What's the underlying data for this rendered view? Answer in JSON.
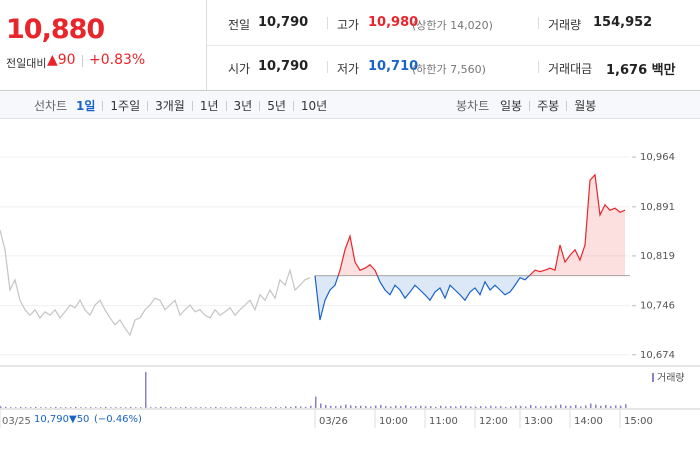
{
  "header": {
    "price": "10,880",
    "change_label": "전일대비",
    "change": "▲90",
    "change_pct": "+0.83%",
    "stats": [
      {
        "label": "전일",
        "value": "10,790"
      },
      {
        "label": "고가",
        "value": "10,980",
        "note": "(상한가 14,020)"
      },
      {
        "label": "거래량",
        "value": "154,952"
      },
      {
        "label": "시가",
        "value": "10,790"
      },
      {
        "label": "저가",
        "value": "10,710",
        "note": "(하한가 7,560)"
      },
      {
        "label": "거래대금",
        "value": "1,676 백만"
      }
    ]
  },
  "tabs": {
    "line_label": "선차트",
    "line_tabs": [
      "1일",
      "1주일",
      "3개월",
      "1년",
      "3년",
      "5년",
      "10년"
    ],
    "candle_label": "봉차트",
    "candle_tabs": [
      "일봉",
      "주봉",
      "월봉"
    ]
  },
  "footer": {
    "close": "10,790",
    "change": "▼50",
    "change_pct": "(−0.46%)"
  },
  "chart_data": {
    "type": "line",
    "categories": [
      "03/25",
      null,
      null,
      null,
      null,
      null,
      null,
      null,
      null,
      null,
      null,
      null,
      null,
      null,
      null,
      null,
      null,
      null,
      null,
      null,
      null,
      null,
      null,
      null,
      null,
      null,
      null,
      null,
      null,
      null,
      null,
      null,
      null,
      null,
      null,
      null,
      null,
      null,
      null,
      null,
      null,
      null,
      null,
      null,
      null,
      null,
      null,
      null,
      null,
      null,
      null,
      null,
      null,
      null,
      null,
      null,
      null,
      null,
      null,
      null,
      null,
      null,
      null,
      "03/26",
      null,
      null,
      null,
      null,
      null,
      null,
      null,
      null,
      null,
      null,
      null,
      "10:00",
      null,
      null,
      null,
      null,
      null,
      null,
      null,
      null,
      null,
      "11:00",
      null,
      null,
      null,
      null,
      null,
      null,
      null,
      null,
      null,
      "12:00",
      null,
      null,
      null,
      null,
      null,
      null,
      null,
      null,
      "13:00",
      null,
      null,
      null,
      null,
      null,
      null,
      null,
      null,
      null,
      "14:00",
      null,
      null,
      null,
      null,
      null,
      null,
      null,
      null,
      null,
      "15:00",
      null
    ],
    "reference": 10790,
    "ylim": [
      10659,
      11011
    ],
    "yticks": [
      {
        "value": 10964,
        "label": "10,964"
      },
      {
        "value": 10891,
        "label": "10,891"
      },
      {
        "value": 10819,
        "label": "10,819"
      },
      {
        "value": 10746,
        "label": "10,746"
      },
      {
        "value": 10674,
        "label": "10,674"
      }
    ],
    "grid": true,
    "series": [
      {
        "color": "#c4c4c4",
        "values": [
          10857,
          10828,
          10769,
          10784,
          10754,
          10740,
          10732,
          10740,
          10728,
          10737,
          10732,
          10740,
          10728,
          10737,
          10747,
          10743,
          10754,
          10740,
          10732,
          10747,
          10754,
          10740,
          10728,
          10718,
          10725,
          10713,
          10703,
          10725,
          10728,
          10740,
          10747,
          10757,
          10754,
          10740,
          10747,
          10754,
          10732,
          10740,
          10747,
          10737,
          10740,
          10732,
          10728,
          10740,
          10732,
          10737,
          10743,
          10732,
          10740,
          10747,
          10754,
          10740,
          10762,
          10754,
          10769,
          10757,
          10784,
          10776,
          10798,
          10769,
          10776,
          10784,
          10787,
          null,
          null,
          null,
          null,
          null,
          null,
          null,
          null,
          null,
          null,
          null,
          null,
          null,
          null,
          null,
          null,
          null,
          null,
          null,
          null,
          null,
          null,
          null,
          null,
          null,
          null,
          null,
          null,
          null,
          null,
          null,
          null,
          null,
          null,
          null,
          null,
          null,
          null,
          null,
          null,
          null,
          null,
          null,
          null,
          null,
          null,
          null,
          null,
          null,
          null,
          null,
          null,
          null,
          null,
          null,
          null,
          null,
          null,
          null,
          null,
          null,
          null,
          null
        ]
      },
      {
        "color": "#e8252b",
        "color_below": "#1a63c8",
        "values": [
          null,
          null,
          null,
          null,
          null,
          null,
          null,
          null,
          null,
          null,
          null,
          null,
          null,
          null,
          null,
          null,
          null,
          null,
          null,
          null,
          null,
          null,
          null,
          null,
          null,
          null,
          null,
          null,
          null,
          null,
          null,
          null,
          null,
          null,
          null,
          null,
          null,
          null,
          null,
          null,
          null,
          null,
          null,
          null,
          null,
          null,
          null,
          null,
          null,
          null,
          null,
          null,
          null,
          null,
          null,
          null,
          null,
          null,
          null,
          null,
          null,
          null,
          null,
          10790,
          10725,
          10754,
          10769,
          10776,
          10798,
          10828,
          10848,
          10810,
          10798,
          10801,
          10806,
          10798,
          10781,
          10769,
          10762,
          10776,
          10769,
          10757,
          10766,
          10776,
          10769,
          10762,
          10754,
          10766,
          10772,
          10757,
          10776,
          10769,
          10762,
          10754,
          10766,
          10772,
          10762,
          10781,
          10769,
          10776,
          10769,
          10762,
          10766,
          10776,
          10787,
          10784,
          10791,
          10798,
          10796,
          10798,
          10801,
          10798,
          10835,
          10810,
          10820,
          10828,
          10813,
          10835,
          10930,
          10938,
          10879,
          10894,
          10886,
          10889,
          10883,
          10886
        ]
      },
      {
        "name": "거래량",
        "color": "#8a7fc8",
        "axis": "volume",
        "values": [
          4,
          3,
          2,
          2,
          3,
          2,
          2,
          3,
          2,
          2,
          2,
          3,
          2,
          2,
          2,
          3,
          2,
          2,
          2,
          2,
          2,
          3,
          2,
          2,
          2,
          2,
          3,
          2,
          2,
          95,
          2,
          2,
          3,
          2,
          2,
          2,
          2,
          3,
          2,
          2,
          2,
          2,
          2,
          3,
          2,
          2,
          2,
          2,
          3,
          2,
          2,
          2,
          3,
          2,
          2,
          3,
          2,
          4,
          3,
          5,
          4,
          3,
          6,
          30,
          12,
          8,
          6,
          5,
          6,
          9,
          7,
          5,
          6,
          5,
          4,
          6,
          8,
          5,
          4,
          6,
          5,
          7,
          4,
          5,
          6,
          4,
          5,
          3,
          6,
          4,
          5,
          4,
          6,
          5,
          4,
          3,
          5,
          4,
          6,
          4,
          5,
          3,
          4,
          6,
          5,
          4,
          8,
          5,
          4,
          6,
          5,
          7,
          9,
          6,
          5,
          8,
          4,
          7,
          12,
          9,
          6,
          8,
          5,
          7,
          6,
          10
        ]
      }
    ],
    "volume_lim": [
      0,
      100
    ]
  }
}
